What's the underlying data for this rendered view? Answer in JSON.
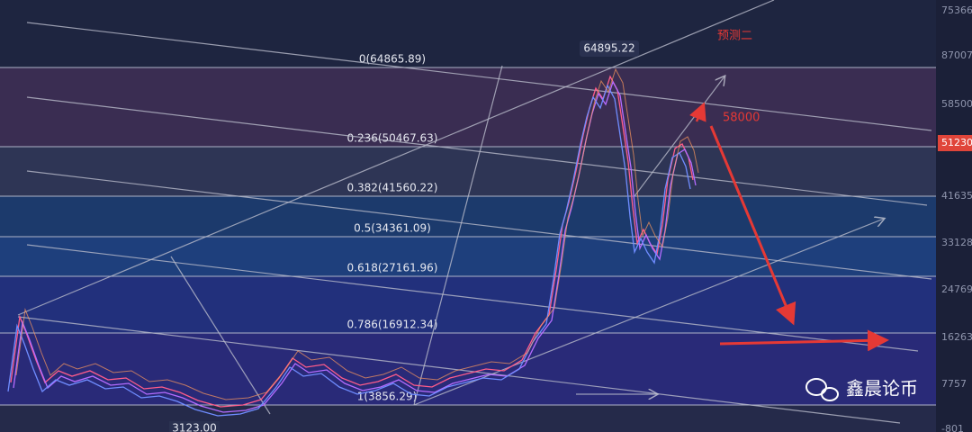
{
  "fib_levels": [
    {
      "label": "0(64865.89)"
    },
    {
      "label": "0.236(50467.63)"
    },
    {
      "label": "0.382(41560.22)"
    },
    {
      "label": "0.5(34361.09)"
    },
    {
      "label": "0.618(27161.96)"
    },
    {
      "label": "0.786(16912.34)"
    },
    {
      "label": "1(3856.29)"
    }
  ],
  "price_tags": {
    "high": "64895.22",
    "low": "3123.00",
    "current": "51230"
  },
  "annotations": {
    "forecast": "预测二",
    "target": "58000"
  },
  "axis_labels": [
    "75366",
    "87007",
    "58500",
    "41635",
    "33128",
    "24769",
    "16263",
    "7757",
    "-801"
  ],
  "watermark": "鑫晨论币"
}
